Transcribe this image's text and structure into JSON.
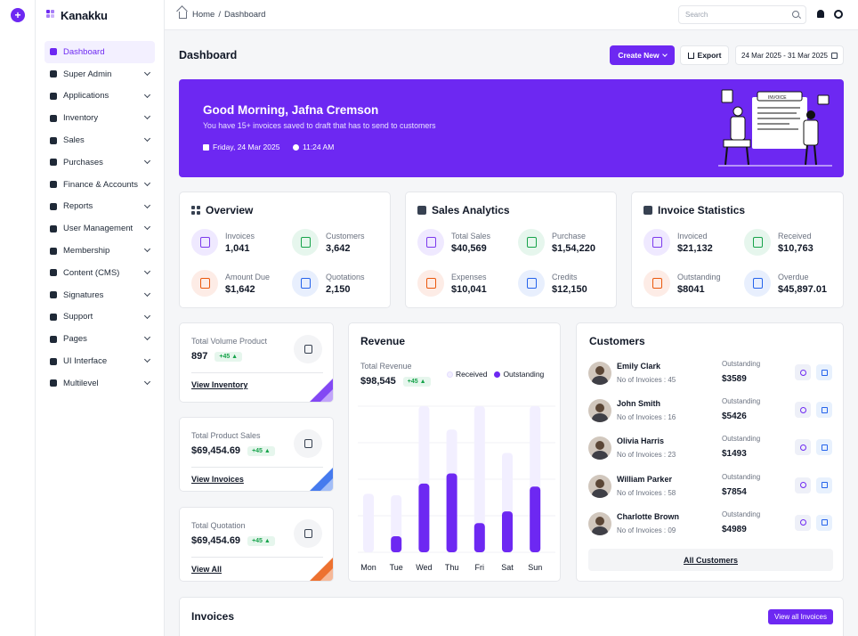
{
  "brand": {
    "name": "Kanakku"
  },
  "sidebar": {
    "items": [
      {
        "label": "Dashboard",
        "icon": "dashboard-icon",
        "active": true,
        "expandable": false
      },
      {
        "label": "Super Admin",
        "icon": "user-shield-icon",
        "expandable": true
      },
      {
        "label": "Applications",
        "icon": "apps-icon",
        "expandable": true
      },
      {
        "label": "Inventory",
        "icon": "inventory-icon",
        "expandable": true
      },
      {
        "label": "Sales",
        "icon": "sales-icon",
        "expandable": true
      },
      {
        "label": "Purchases",
        "icon": "purchases-icon",
        "expandable": true
      },
      {
        "label": "Finance & Accounts",
        "icon": "finance-icon",
        "expandable": true
      },
      {
        "label": "Reports",
        "icon": "reports-icon",
        "expandable": true
      },
      {
        "label": "User Management",
        "icon": "user-icon",
        "expandable": true
      },
      {
        "label": "Membership",
        "icon": "membership-icon",
        "expandable": true
      },
      {
        "label": "Content (CMS)",
        "icon": "cms-icon",
        "expandable": true
      },
      {
        "label": "Signatures",
        "icon": "signature-icon",
        "expandable": true
      },
      {
        "label": "Support",
        "icon": "support-icon",
        "expandable": true
      },
      {
        "label": "Pages",
        "icon": "pages-icon",
        "expandable": true
      },
      {
        "label": "UI Interface",
        "icon": "ui-icon",
        "expandable": true
      },
      {
        "label": "Multilevel",
        "icon": "multilevel-icon",
        "expandable": true
      }
    ]
  },
  "header": {
    "breadcrumb_home": "Home",
    "breadcrumb_sep": "/",
    "breadcrumb_current": "Dashboard",
    "search_placeholder": "Search"
  },
  "toolbar": {
    "title": "Dashboard",
    "create_label": "Create New",
    "export_label": "Export",
    "date_range": "24 Mar 2025 - 31 Mar 2025"
  },
  "banner": {
    "greeting": "Good Morning, Jafna Cremson",
    "subtitle": "You have 15+ invoices saved to draft that has to send to customers",
    "date": "Friday, 24 Mar 2025",
    "time": "11:24 AM",
    "invoice_tag": "INVOICE"
  },
  "overview": {
    "title": "Overview",
    "stats": [
      {
        "label": "Invoices",
        "value": "1,041",
        "color": "purple"
      },
      {
        "label": "Customers",
        "value": "3,642",
        "color": "green"
      },
      {
        "label": "Amount Due",
        "value": "$1,642",
        "color": "orange"
      },
      {
        "label": "Quotations",
        "value": "2,150",
        "color": "blue"
      }
    ]
  },
  "sales_analytics": {
    "title": "Sales Analytics",
    "stats": [
      {
        "label": "Total Sales",
        "value": "$40,569",
        "color": "purple"
      },
      {
        "label": "Purchase",
        "value": "$1,54,220",
        "color": "green"
      },
      {
        "label": "Expenses",
        "value": "$10,041",
        "color": "orange"
      },
      {
        "label": "Credits",
        "value": "$12,150",
        "color": "blue"
      }
    ]
  },
  "invoice_statistics": {
    "title": "Invoice Statistics",
    "stats": [
      {
        "label": "Invoiced",
        "value": "$21,132",
        "color": "purple"
      },
      {
        "label": "Received",
        "value": "$10,763",
        "color": "green"
      },
      {
        "label": "Outstanding",
        "value": "$8041",
        "color": "orange"
      },
      {
        "label": "Overdue",
        "value": "$45,897.01",
        "color": "blue"
      }
    ]
  },
  "mini_cards": [
    {
      "label": "Total Volume Product",
      "value": "897",
      "badge": "+45 ▲",
      "link": "View Inventory",
      "accent": "#6d28f2"
    },
    {
      "label": "Total Product Sales",
      "value": "$69,454.69",
      "badge": "+45 ▲",
      "link": "View Invoices",
      "accent": "#2563eb"
    },
    {
      "label": "Total Quotation",
      "value": "$69,454.69",
      "badge": "+45 ▲",
      "link": "View All",
      "accent": "#ea580c"
    }
  ],
  "revenue": {
    "title": "Revenue",
    "total_label": "Total Revenue",
    "total_value": "$98,545",
    "badge": "+45 ▲",
    "legend_received": "Received",
    "legend_outstanding": "Outstanding"
  },
  "chart_data": {
    "type": "bar",
    "categories": [
      "Mon",
      "Tue",
      "Wed",
      "Thu",
      "Fri",
      "Sat",
      "Sun"
    ],
    "ylim": [
      0,
      100
    ],
    "series": [
      {
        "name": "Received",
        "values": [
          40,
          39,
          100,
          84,
          100,
          68,
          100
        ],
        "color": "#f2efff"
      },
      {
        "name": "Outstanding",
        "values": [
          0,
          11,
          47,
          54,
          20,
          28,
          45
        ],
        "color": "#6d28f2"
      }
    ]
  },
  "customers": {
    "title": "Customers",
    "outstanding_label": "Outstanding",
    "list": [
      {
        "name": "Emily Clark",
        "invoices": "No of Invoices : 45",
        "amount": "$3589"
      },
      {
        "name": "John Smith",
        "invoices": "No of Invoices : 16",
        "amount": "$5426"
      },
      {
        "name": "Olivia Harris",
        "invoices": "No of Invoices : 23",
        "amount": "$1493"
      },
      {
        "name": "William Parker",
        "invoices": "No of Invoices : 58",
        "amount": "$7854"
      },
      {
        "name": "Charlotte Brown",
        "invoices": "No of Invoices : 09",
        "amount": "$4989"
      }
    ],
    "all_label": "All Customers"
  },
  "invoices": {
    "title": "Invoices",
    "view_all_label": "View all Invoices"
  }
}
